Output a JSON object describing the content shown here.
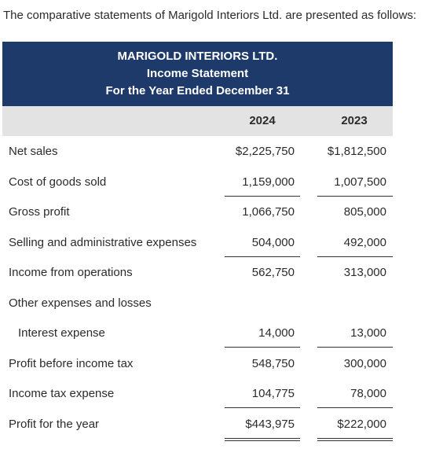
{
  "intro": "The comparative statements of Marigold Interiors Ltd. are presented as follows:",
  "header": {
    "company": "MARIGOLD INTERIORS LTD.",
    "statement": "Income Statement",
    "period": "For the Year Ended December 31"
  },
  "columns": [
    "2024",
    "2023"
  ],
  "colors": {
    "header_bg": "#1e3a6b",
    "column_header_bg": "#e3e3e3"
  },
  "rows": [
    {
      "label": "Net sales",
      "v2024": "$2,225,750",
      "v2023": "$1,812,500"
    },
    {
      "label": "Cost of goods sold",
      "v2024": "1,159,000",
      "v2023": "1,007,500"
    },
    {
      "label": "Gross profit",
      "v2024": "1,066,750",
      "v2023": "805,000"
    },
    {
      "label": "Selling and administrative expenses",
      "v2024": "504,000",
      "v2023": "492,000"
    },
    {
      "label": "Income from operations",
      "v2024": "562,750",
      "v2023": "313,000"
    },
    {
      "label": "Other expenses and losses",
      "v2024": "",
      "v2023": ""
    },
    {
      "label": "Interest expense",
      "v2024": "14,000",
      "v2023": "13,000"
    },
    {
      "label": "Profit before income tax",
      "v2024": "548,750",
      "v2023": "300,000"
    },
    {
      "label": "Income tax expense",
      "v2024": "104,775",
      "v2023": "78,000"
    },
    {
      "label": "Profit for the year",
      "v2024": "$443,975",
      "v2023": "$222,000"
    }
  ]
}
